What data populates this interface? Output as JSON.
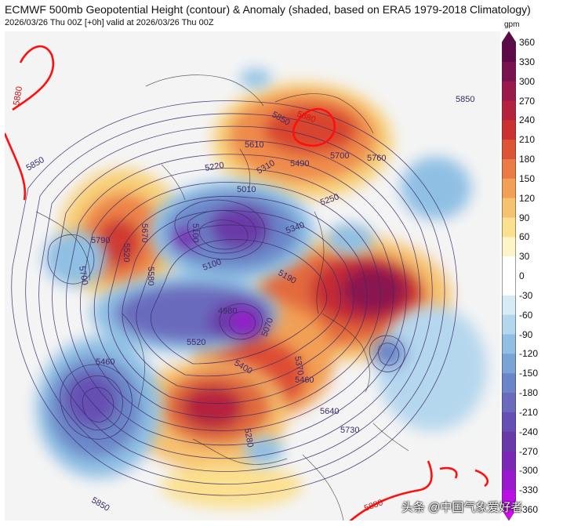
{
  "header": {
    "title": "ECMWF 500mb Geopotential Height (contour) & Anomaly (shaded, based on ERA5 1979-2018 Climatology)",
    "subtitle": "2026/03/26 Thu 00Z [+0h] valid at 2026/03/26 Thu 00Z"
  },
  "colorbar": {
    "unit": "gpm",
    "ticks": [
      "360",
      "330",
      "300",
      "270",
      "240",
      "210",
      "180",
      "150",
      "120",
      "90",
      "60",
      "30",
      "0",
      "-30",
      "-60",
      "-90",
      "-120",
      "-150",
      "-180",
      "-210",
      "-240",
      "-270",
      "-300",
      "-330",
      "-360"
    ],
    "colors": [
      "#5e0a4a",
      "#7a1150",
      "#9a1a4e",
      "#b5223e",
      "#cc3030",
      "#de5535",
      "#ea7b45",
      "#f2a055",
      "#f6c270",
      "#fbe08f",
      "#fdf5c8",
      "#ffffff",
      "#ffffff",
      "#d6ebf5",
      "#b5d7ee",
      "#8fc0e4",
      "#7aa3d6",
      "#6b86c8",
      "#6a6bbd",
      "#6650b3",
      "#6a3aa8",
      "#7a28b5",
      "#9a18cf",
      "#bb0fe6",
      "#d40aef"
    ]
  },
  "contour_labels": [
    {
      "text": "5880",
      "red": true
    },
    {
      "text": "5880",
      "red": true
    },
    {
      "text": "5880",
      "red": true
    },
    {
      "text": "5850"
    },
    {
      "text": "5850"
    },
    {
      "text": "5850"
    },
    {
      "text": "5850"
    },
    {
      "text": "5760"
    },
    {
      "text": "5700"
    },
    {
      "text": "5700"
    },
    {
      "text": "5670"
    },
    {
      "text": "5640"
    },
    {
      "text": "5610"
    },
    {
      "text": "5580"
    },
    {
      "text": "5520"
    },
    {
      "text": "5520"
    },
    {
      "text": "5490"
    },
    {
      "text": "5460"
    },
    {
      "text": "5460"
    },
    {
      "text": "5400"
    },
    {
      "text": "5370"
    },
    {
      "text": "5340"
    },
    {
      "text": "5310"
    },
    {
      "text": "5250"
    },
    {
      "text": "5220"
    },
    {
      "text": "5190"
    },
    {
      "text": "5100"
    },
    {
      "text": "5100"
    },
    {
      "text": "5070"
    },
    {
      "text": "5010"
    },
    {
      "text": "4980"
    },
    {
      "text": "5790"
    },
    {
      "text": "5730"
    },
    {
      "text": "5280"
    }
  ],
  "watermark": "头条 @中国气象爱好者"
}
